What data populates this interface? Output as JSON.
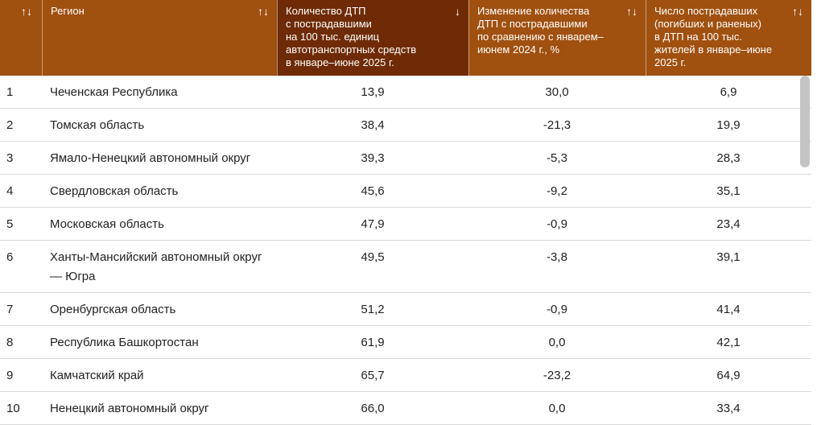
{
  "table": {
    "columns": [
      {
        "label": "",
        "sort_icon": "↑↓"
      },
      {
        "label": "Регион",
        "sort_icon": "↑↓"
      },
      {
        "label": "Количество ДТП\nс пострадавшими\nна 100 тыс. единиц\nавтотранспортных средств\nв январе–июне 2025 г.",
        "sort_icon": "↓"
      },
      {
        "label": "Изменение количества\nДТП с пострадавшими\nпо сравнению с январем–\nиюнем 2024 г., %",
        "sort_icon": "↑↓"
      },
      {
        "label": "Число пострадавших\n(погибших и раненых)\nв ДТП на 100 тыс.\nжителей в январе–июне\n2025 г.",
        "sort_icon": "↑↓"
      }
    ],
    "rows": [
      {
        "rank": "1",
        "region": "Чеченская Республика",
        "accidents": "13,9",
        "change": "30,0",
        "victims": "6,9"
      },
      {
        "rank": "2",
        "region": "Томская область",
        "accidents": "38,4",
        "change": "-21,3",
        "victims": "19,9"
      },
      {
        "rank": "3",
        "region": "Ямало-Ненецкий автономный округ",
        "accidents": "39,3",
        "change": "-5,3",
        "victims": "28,3"
      },
      {
        "rank": "4",
        "region": "Свердловская область",
        "accidents": "45,6",
        "change": "-9,2",
        "victims": "35,1"
      },
      {
        "rank": "5",
        "region": "Московская область",
        "accidents": "47,9",
        "change": "-0,9",
        "victims": "23,4"
      },
      {
        "rank": "6",
        "region": "Ханты-Мансийский автономный округ — Югра",
        "accidents": "49,5",
        "change": "-3,8",
        "victims": "39,1"
      },
      {
        "rank": "7",
        "region": "Оренбургская область",
        "accidents": "51,2",
        "change": "-0,9",
        "victims": "41,4"
      },
      {
        "rank": "8",
        "region": "Республика Башкортостан",
        "accidents": "61,9",
        "change": "0,0",
        "victims": "42,1"
      },
      {
        "rank": "9",
        "region": "Камчатский край",
        "accidents": "65,7",
        "change": "-23,2",
        "victims": "64,9"
      },
      {
        "rank": "10",
        "region": "Ненецкий автономный округ",
        "accidents": "66,0",
        "change": "0,0",
        "victims": "33,4"
      }
    ]
  },
  "colors": {
    "header": "#a0500f",
    "header_active": "#6e2b06",
    "scroll_thumb": "#c4c4c4"
  }
}
